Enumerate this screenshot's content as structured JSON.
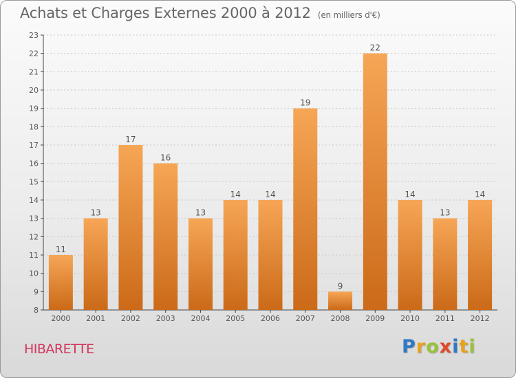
{
  "header": {
    "title": "Achats et Charges Externes 2000 à 2012",
    "unit": "(en milliers d'€)"
  },
  "footer": {
    "commune": "HIBARETTE",
    "brand_letters": [
      {
        "ch": "P",
        "color": "#2f79c6"
      },
      {
        "ch": "r",
        "color": "#e8a31b"
      },
      {
        "ch": "o",
        "color": "#9ac33a"
      },
      {
        "ch": "x",
        "color": "#e04a2a"
      },
      {
        "ch": "i",
        "color": "#2f79c6"
      },
      {
        "ch": "t",
        "color": "#e8a31b"
      },
      {
        "ch": "i",
        "color": "#9ac33a"
      }
    ]
  },
  "chart_data": {
    "type": "bar",
    "title": "Achats et Charges Externes 2000 à 2012",
    "categories": [
      "2000",
      "2001",
      "2002",
      "2003",
      "2004",
      "2005",
      "2006",
      "2007",
      "2008",
      "2009",
      "2010",
      "2011",
      "2012"
    ],
    "values": [
      11,
      13,
      17,
      16,
      13,
      14,
      14,
      19,
      9,
      22,
      14,
      13,
      14
    ],
    "ylim": [
      8,
      23
    ],
    "yticks": [
      8,
      9,
      10,
      11,
      12,
      13,
      14,
      15,
      16,
      17,
      18,
      19,
      20,
      21,
      22,
      23
    ],
    "grid": true,
    "colors": {
      "bar_top": "#f6a656",
      "bar_bottom": "#cb6a18",
      "label": "#555555",
      "axis": "#444444",
      "grid": "#c8c8c8"
    }
  }
}
